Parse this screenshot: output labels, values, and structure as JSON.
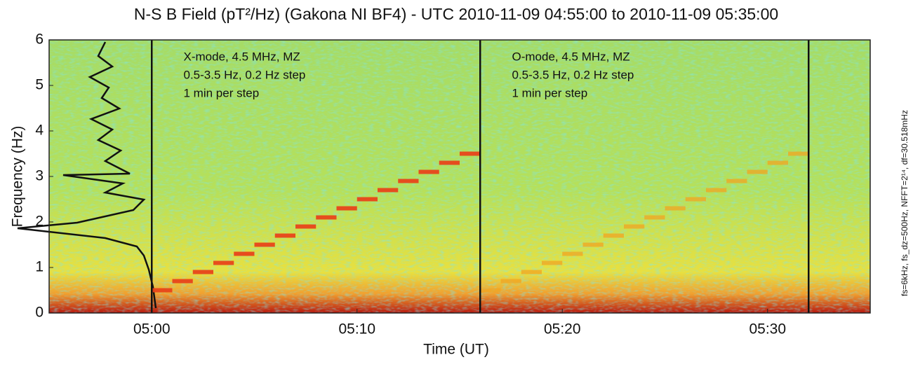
{
  "chart_data": {
    "type": "spectrogram",
    "title": "N-S B Field (pT²/Hz) (Gakona NI BF4) - UTC 2010-11-09 04:55:00 to 2010-11-09 05:35:00",
    "side_note": "fs=6kHz, fs_dz=500Hz, NFFT=2¹⁴, df=30.518mHz",
    "xlabel": "Time (UT)",
    "ylabel": "Frequency (Hz)",
    "xlim": [
      "04:55",
      "05:35"
    ],
    "xticks": [
      "05:00",
      "05:10",
      "05:20",
      "05:30"
    ],
    "ylim": [
      0,
      6
    ],
    "yticks": [
      0,
      1,
      2,
      3,
      4,
      5,
      6
    ],
    "markers": [
      "05:00",
      "05:16",
      "05:32"
    ],
    "annotations": [
      {
        "x": "05:01",
        "lines": [
          "X-mode,  4.5 MHz,  MZ",
          "0.5-3.5 Hz,  0.2 Hz step",
          "1 min per step"
        ]
      },
      {
        "x": "05:17",
        "lines": [
          "O-mode,  4.5 MHz,  MZ",
          "0.5-3.5 Hz,  0.2 Hz step",
          "1 min per step"
        ]
      }
    ],
    "series": [
      {
        "name": "X-mode",
        "color": "#e8441a",
        "x": [
          "05:00",
          "05:01",
          "05:02",
          "05:03",
          "05:04",
          "05:05",
          "05:06",
          "05:07",
          "05:08",
          "05:09",
          "05:10",
          "05:11",
          "05:12",
          "05:13",
          "05:14",
          "05:15"
        ],
        "values": [
          0.5,
          0.7,
          0.9,
          1.1,
          1.3,
          1.5,
          1.7,
          1.9,
          2.1,
          2.3,
          2.5,
          2.7,
          2.9,
          3.1,
          3.3,
          3.5
        ]
      },
      {
        "name": "O-mode",
        "color": "#f2a422",
        "x": [
          "05:16",
          "05:17",
          "05:18",
          "05:19",
          "05:20",
          "05:21",
          "05:22",
          "05:23",
          "05:24",
          "05:25",
          "05:26",
          "05:27",
          "05:28",
          "05:29",
          "05:30",
          "05:31"
        ],
        "values": [
          0.5,
          0.7,
          0.9,
          1.1,
          1.3,
          1.5,
          1.7,
          1.9,
          2.1,
          2.3,
          2.5,
          2.7,
          2.9,
          3.1,
          3.3,
          3.5
        ]
      }
    ]
  }
}
